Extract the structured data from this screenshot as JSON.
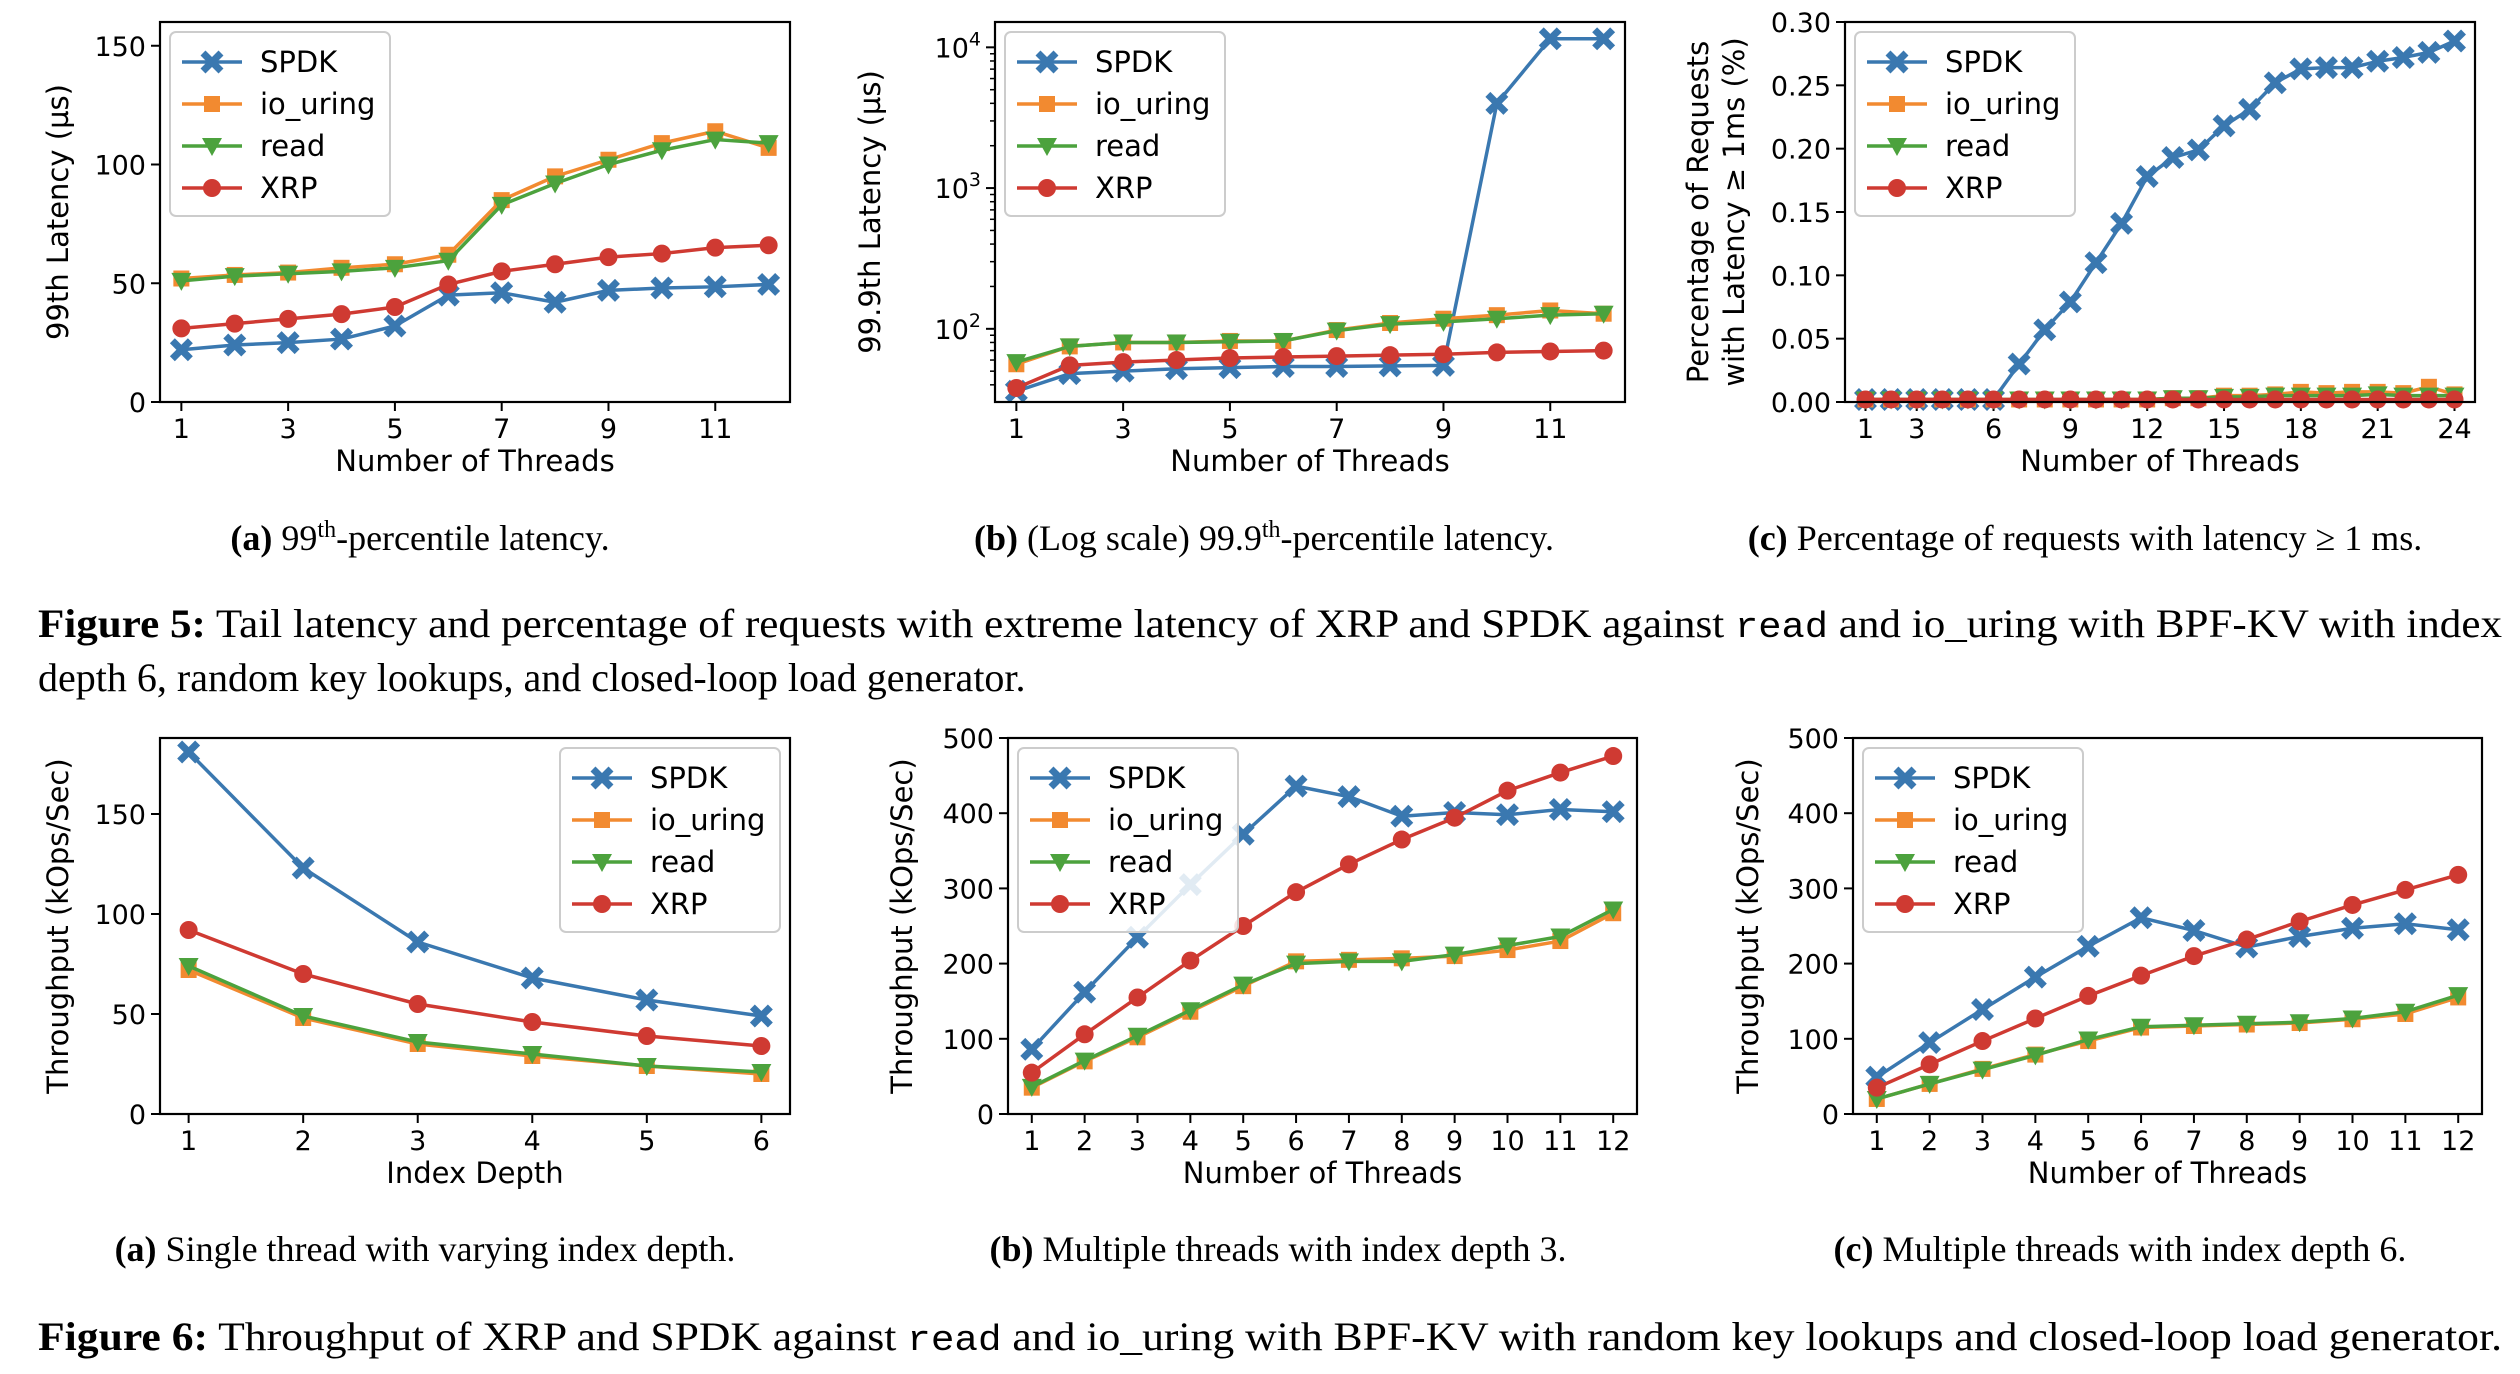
{
  "colors": {
    "SPDK": "#3a78b0",
    "io_uring": "#f28a30",
    "read": "#4ca23d",
    "XRP": "#cf3a32"
  },
  "markers": {
    "SPDK": "x",
    "io_uring": "square",
    "read": "triangle-down",
    "XRP": "circle"
  },
  "subcaptions": [
    {
      "label": "(a)",
      "pre": " 99",
      "sup": "th",
      "post": "-percentile latency."
    },
    {
      "label": "(b)",
      "pre": " (Log scale) 99.9",
      "sup": "th",
      "post": "-percentile latency."
    },
    {
      "label": "(c)",
      "pre": " Percentage of requests with latency ≥ 1 ms.",
      "sup": "",
      "post": ""
    },
    {
      "label": "(a)",
      "pre": " Single thread with varying index depth.",
      "sup": "",
      "post": ""
    },
    {
      "label": "(b)",
      "pre": " Multiple threads with index depth 3.",
      "sup": "",
      "post": ""
    },
    {
      "label": "(c)",
      "pre": " Multiple threads with index depth 6.",
      "sup": "",
      "post": ""
    }
  ],
  "captions": {
    "fig5": {
      "label": "Figure 5:",
      "line1_a": " Tail latency and percentage of requests with extreme latency of XRP and SPDK against ",
      "line1_code": "read",
      "line1_b": " and io_uring with BPF-KV with index",
      "line2": "depth 6, random key lookups, and closed-loop load generator."
    },
    "fig6": {
      "label": "Figure 6:",
      "line1_a": " Throughput of XRP and SPDK against ",
      "line1_code": "read",
      "line1_b": " and io_uring with BPF-KV with random key lookups and closed-loop load generator."
    }
  },
  "chart_data": [
    {
      "type": "line",
      "scale": "linear",
      "xlabel": "Number of Threads",
      "ylabel": "99th Latency (µs)",
      "xlim": [
        0.6,
        12.4
      ],
      "ylim": [
        0,
        160
      ],
      "xticks": [
        1,
        3,
        5,
        7,
        9,
        11
      ],
      "yticks": [
        0,
        50,
        100,
        150
      ],
      "legend": "upper-left",
      "x": [
        1,
        2,
        3,
        4,
        5,
        6,
        7,
        8,
        9,
        10,
        11,
        12
      ],
      "series": [
        {
          "name": "SPDK",
          "values": [
            22,
            24,
            25,
            26.5,
            32,
            45,
            46,
            42,
            47,
            48,
            48.5,
            49.5
          ]
        },
        {
          "name": "io_uring",
          "values": [
            52,
            53.5,
            54.5,
            56.5,
            58,
            62,
            85,
            95,
            102,
            109,
            114,
            107
          ]
        },
        {
          "name": "read",
          "values": [
            51,
            53,
            54,
            55,
            56.5,
            59.5,
            83,
            92,
            100,
            106,
            110.5,
            109
          ]
        },
        {
          "name": "XRP",
          "values": [
            31,
            33,
            35,
            37,
            40,
            49.5,
            55,
            58,
            61,
            62.5,
            65,
            66
          ]
        }
      ]
    },
    {
      "type": "line",
      "scale": "log",
      "xlabel": "Number of Threads",
      "ylabel": "99.9th Latency (µs)",
      "xlim": [
        0.6,
        12.4
      ],
      "ylim_log10": [
        1.48,
        4.18
      ],
      "xticks": [
        1,
        3,
        5,
        7,
        9,
        11
      ],
      "yticks_exp": [
        2,
        3,
        4
      ],
      "legend": "upper-left",
      "x": [
        1,
        2,
        3,
        4,
        5,
        6,
        7,
        8,
        9,
        10,
        11,
        12
      ],
      "series": [
        {
          "name": "SPDK",
          "values": [
            36,
            48,
            50,
            52,
            53,
            54,
            54,
            54.5,
            55,
            4000,
            11500,
            11500
          ]
        },
        {
          "name": "io_uring",
          "values": [
            56,
            75,
            80,
            80,
            82,
            82,
            98,
            110,
            118,
            125,
            135,
            128
          ]
        },
        {
          "name": "read",
          "values": [
            58,
            75,
            80,
            80,
            81,
            82,
            97,
            108,
            112,
            118,
            125,
            128
          ]
        },
        {
          "name": "XRP",
          "values": [
            38,
            55,
            58,
            60,
            62,
            63,
            64,
            65,
            66,
            68,
            69,
            70
          ]
        }
      ]
    },
    {
      "type": "line",
      "scale": "linear",
      "xlabel": "Number of Threads",
      "ylabel_lines": [
        "Percentage of Requests",
        "with Latency ≥ 1ms (%)"
      ],
      "xlim": [
        0.2,
        24.8
      ],
      "ylim": [
        0,
        0.3
      ],
      "xticks": [
        1,
        3,
        6,
        9,
        12,
        15,
        18,
        21,
        24
      ],
      "yticks": [
        0.0,
        0.05,
        0.1,
        0.15,
        0.2,
        0.25,
        0.3
      ],
      "ytick_labels": [
        "0.00",
        "0.05",
        "0.10",
        "0.15",
        "0.20",
        "0.25",
        "0.30"
      ],
      "legend": "upper-left",
      "x": [
        1,
        2,
        3,
        4,
        5,
        6,
        7,
        8,
        9,
        10,
        11,
        12,
        13,
        14,
        15,
        16,
        17,
        18,
        19,
        20,
        21,
        22,
        23,
        24
      ],
      "series": [
        {
          "name": "SPDK",
          "values": [
            0.002,
            0.002,
            0.002,
            0.002,
            0.002,
            0.002,
            0.03,
            0.057,
            0.079,
            0.11,
            0.141,
            0.178,
            0.193,
            0.199,
            0.218,
            0.231,
            0.252,
            0.263,
            0.264,
            0.264,
            0.269,
            0.272,
            0.276,
            0.285
          ]
        },
        {
          "name": "io_uring",
          "values": [
            0.002,
            0.002,
            0.002,
            0.002,
            0.002,
            0.002,
            0.002,
            0.002,
            0.002,
            0.002,
            0.002,
            0.002,
            0.003,
            0.003,
            0.005,
            0.005,
            0.006,
            0.008,
            0.007,
            0.008,
            0.008,
            0.007,
            0.012,
            0.006
          ]
        },
        {
          "name": "read",
          "values": [
            0.002,
            0.002,
            0.002,
            0.002,
            0.002,
            0.002,
            0.002,
            0.002,
            0.002,
            0.002,
            0.002,
            0.002,
            0.003,
            0.003,
            0.004,
            0.004,
            0.005,
            0.005,
            0.005,
            0.005,
            0.006,
            0.005,
            0.005,
            0.005
          ]
        },
        {
          "name": "XRP",
          "values": [
            0.002,
            0.002,
            0.002,
            0.002,
            0.002,
            0.002,
            0.002,
            0.002,
            0.002,
            0.002,
            0.002,
            0.002,
            0.002,
            0.002,
            0.002,
            0.002,
            0.002,
            0.002,
            0.002,
            0.002,
            0.002,
            0.002,
            0.002,
            0.002
          ]
        }
      ]
    },
    {
      "type": "line",
      "scale": "linear",
      "xlabel": "Index Depth",
      "ylabel": "Throughput (kOps/Sec)",
      "xlim": [
        0.75,
        6.25
      ],
      "ylim": [
        0,
        188
      ],
      "xticks": [
        1,
        2,
        3,
        4,
        5,
        6
      ],
      "yticks": [
        0,
        50,
        100,
        150
      ],
      "legend": "upper-right",
      "x": [
        1,
        2,
        3,
        4,
        5,
        6
      ],
      "series": [
        {
          "name": "SPDK",
          "values": [
            181,
            123,
            86,
            68,
            57,
            49
          ]
        },
        {
          "name": "io_uring",
          "values": [
            72,
            48,
            35,
            29,
            24,
            20
          ]
        },
        {
          "name": "read",
          "values": [
            74,
            49,
            36,
            30,
            24,
            21
          ]
        },
        {
          "name": "XRP",
          "values": [
            92,
            70,
            55,
            46,
            39,
            34
          ]
        }
      ]
    },
    {
      "type": "line",
      "scale": "linear",
      "xlabel": "Number of Threads",
      "ylabel": "Throughput (kOps/Sec)",
      "xlim": [
        0.55,
        12.45
      ],
      "ylim": [
        0,
        500
      ],
      "xticks": [
        1,
        2,
        3,
        4,
        5,
        6,
        7,
        8,
        9,
        10,
        11,
        12
      ],
      "yticks": [
        0,
        100,
        200,
        300,
        400,
        500
      ],
      "legend": "upper-left",
      "x": [
        1,
        2,
        3,
        4,
        5,
        6,
        7,
        8,
        9,
        10,
        11,
        12
      ],
      "series": [
        {
          "name": "SPDK",
          "values": [
            86,
            162,
            235,
            305,
            372,
            436,
            422,
            396,
            401,
            398,
            405,
            402
          ]
        },
        {
          "name": "io_uring",
          "values": [
            35,
            70,
            102,
            136,
            170,
            203,
            205,
            207,
            210,
            218,
            230,
            267
          ]
        },
        {
          "name": "read",
          "values": [
            36,
            71,
            104,
            138,
            172,
            200,
            203,
            203,
            212,
            224,
            236,
            272
          ]
        },
        {
          "name": "XRP",
          "values": [
            55,
            106,
            155,
            204,
            250,
            295,
            332,
            365,
            394,
            430,
            454,
            476
          ]
        }
      ]
    },
    {
      "type": "line",
      "scale": "linear",
      "xlabel": "Number of Threads",
      "ylabel": "Throughput (kOps/Sec)",
      "xlim": [
        0.55,
        12.45
      ],
      "ylim": [
        0,
        500
      ],
      "xticks": [
        1,
        2,
        3,
        4,
        5,
        6,
        7,
        8,
        9,
        10,
        11,
        12
      ],
      "yticks": [
        0,
        100,
        200,
        300,
        400,
        500
      ],
      "legend": "upper-left",
      "x": [
        1,
        2,
        3,
        4,
        5,
        6,
        7,
        8,
        9,
        10,
        11,
        12
      ],
      "series": [
        {
          "name": "SPDK",
          "values": [
            49,
            95,
            139,
            182,
            223,
            261,
            244,
            222,
            236,
            247,
            253,
            245
          ]
        },
        {
          "name": "io_uring",
          "values": [
            20,
            40,
            60,
            79,
            97,
            115,
            117,
            119,
            121,
            126,
            133,
            155
          ]
        },
        {
          "name": "read",
          "values": [
            20,
            40,
            59,
            78,
            99,
            116,
            118,
            120,
            122,
            127,
            136,
            158
          ]
        },
        {
          "name": "XRP",
          "values": [
            35,
            66,
            97,
            127,
            157,
            184,
            210,
            232,
            256,
            278,
            298,
            318
          ]
        }
      ]
    }
  ]
}
